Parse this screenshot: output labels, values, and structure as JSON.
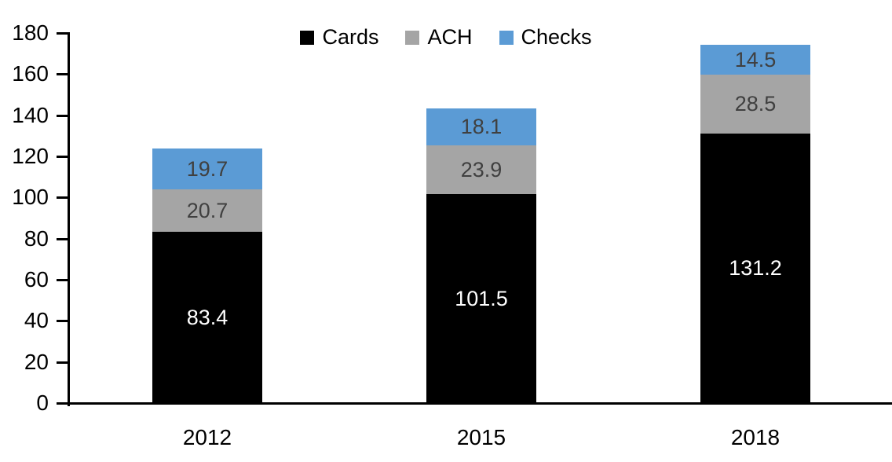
{
  "chart_data": {
    "type": "bar",
    "stacked": true,
    "categories": [
      "2012",
      "2015",
      "2018"
    ],
    "series": [
      {
        "name": "Cards",
        "color": "#000000",
        "label_color": "#ffffff",
        "values": [
          83.4,
          101.5,
          131.2
        ]
      },
      {
        "name": "ACH",
        "color": "#a5a5a5",
        "label_color": "#404040",
        "values": [
          20.7,
          23.9,
          28.5
        ]
      },
      {
        "name": "Checks",
        "color": "#5b9bd5",
        "label_color": "#404040",
        "values": [
          19.7,
          18.1,
          14.5
        ]
      }
    ],
    "title": "",
    "xlabel": "",
    "ylabel": "",
    "ylim": [
      0,
      180
    ],
    "yticks": [
      0,
      20,
      40,
      60,
      80,
      100,
      120,
      140,
      160,
      180
    ],
    "data_labels": true,
    "grid": false,
    "legend_position": "top",
    "axis_color": "#000000",
    "background_color": "#ffffff"
  }
}
